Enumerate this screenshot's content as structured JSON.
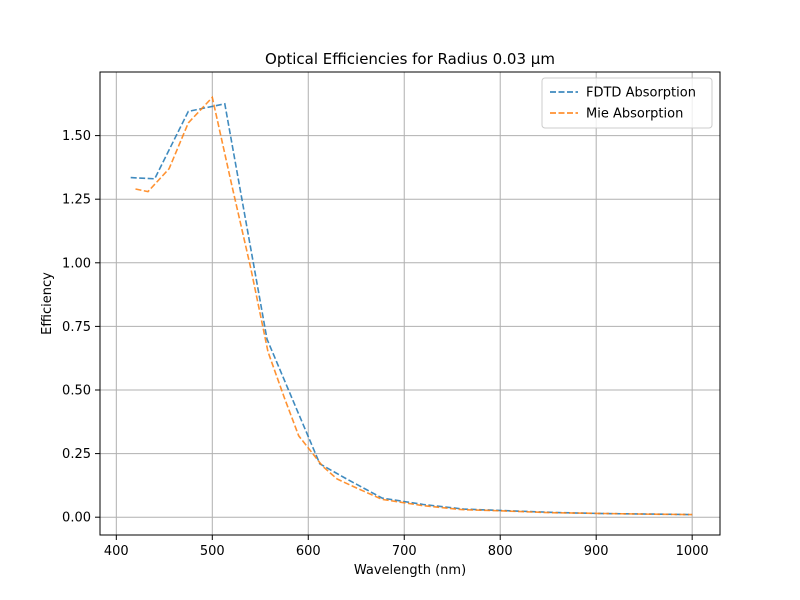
{
  "chart_data": {
    "type": "line",
    "title": "Optical Efficiencies for Radius 0.03 µm",
    "xlabel": "Wavelength (nm)",
    "ylabel": "Efficiency",
    "xlim": [
      383,
      1029
    ],
    "ylim": [
      -0.07,
      1.75
    ],
    "xticks": [
      400,
      500,
      600,
      700,
      800,
      900,
      1000
    ],
    "yticks": [
      0.0,
      0.25,
      0.5,
      0.75,
      1.0,
      1.25,
      1.5
    ],
    "ytick_labels": [
      "0.00",
      "0.25",
      "0.50",
      "0.75",
      "1.00",
      "1.25",
      "1.50"
    ],
    "grid": true,
    "legend_position": "top-right",
    "series": [
      {
        "name": "FDTD Absorption",
        "color": "#1f77b4",
        "line_style": "dashed",
        "x": [
          415,
          440,
          475,
          513,
          557,
          585,
          612,
          640,
          677,
          720,
          762,
          810,
          860,
          910,
          960,
          1000
        ],
        "y": [
          1.335,
          1.33,
          1.595,
          1.625,
          0.7,
          0.45,
          0.21,
          0.15,
          0.075,
          0.05,
          0.032,
          0.025,
          0.018,
          0.014,
          0.012,
          0.01
        ]
      },
      {
        "name": "Mie Absorption",
        "color": "#ff7f0e",
        "line_style": "dashed",
        "x": [
          420,
          433,
          455,
          475,
          500,
          520,
          540,
          558,
          575,
          590,
          615,
          630,
          650,
          677,
          720,
          760,
          800,
          850,
          900,
          950,
          1000
        ],
        "y": [
          1.29,
          1.28,
          1.37,
          1.55,
          1.65,
          1.31,
          0.98,
          0.65,
          0.47,
          0.32,
          0.2,
          0.15,
          0.115,
          0.07,
          0.045,
          0.03,
          0.025,
          0.018,
          0.015,
          0.012,
          0.01
        ]
      }
    ]
  }
}
